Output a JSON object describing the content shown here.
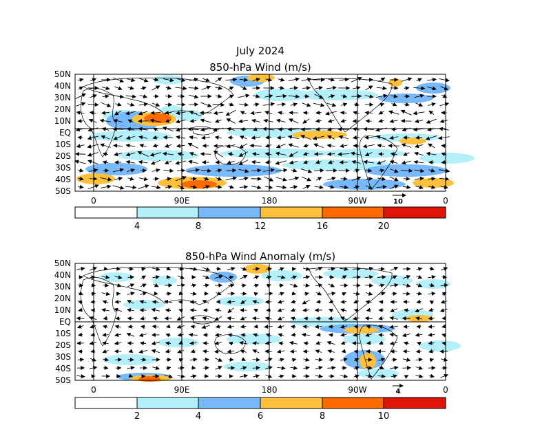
{
  "figure": {
    "title_line1": "July 2024",
    "panels": [
      {
        "title": "850-hPa Wind (m/s)",
        "lat_labels": [
          "50N",
          "40N",
          "30N",
          "20N",
          "10N",
          "EQ",
          "10S",
          "20S",
          "30S",
          "40S",
          "50S"
        ],
        "lon_labels": [
          "0",
          "90E",
          "180",
          "90W",
          "0"
        ],
        "reference_vector": "10",
        "colorbar": {
          "ticks": [
            "4",
            "8",
            "12",
            "16",
            "20"
          ],
          "colors": [
            "#ffffff",
            "#b4f0fa",
            "#78b9fa",
            "#ffc03c",
            "#ff6a00",
            "#e1140a"
          ]
        }
      },
      {
        "title": "850-hPa Wind Anomaly (m/s)",
        "lat_labels": [
          "50N",
          "40N",
          "30N",
          "20N",
          "10N",
          "EQ",
          "10S",
          "20S",
          "30S",
          "40S",
          "50S"
        ],
        "lon_labels": [
          "0",
          "90E",
          "180",
          "90W",
          "0"
        ],
        "reference_vector": "4",
        "colorbar": {
          "ticks": [
            "2",
            "4",
            "6",
            "8",
            "10"
          ],
          "colors": [
            "#ffffff",
            "#b4f0fa",
            "#78b9fa",
            "#ffc03c",
            "#ff6a00",
            "#e1140a"
          ]
        }
      }
    ]
  }
}
